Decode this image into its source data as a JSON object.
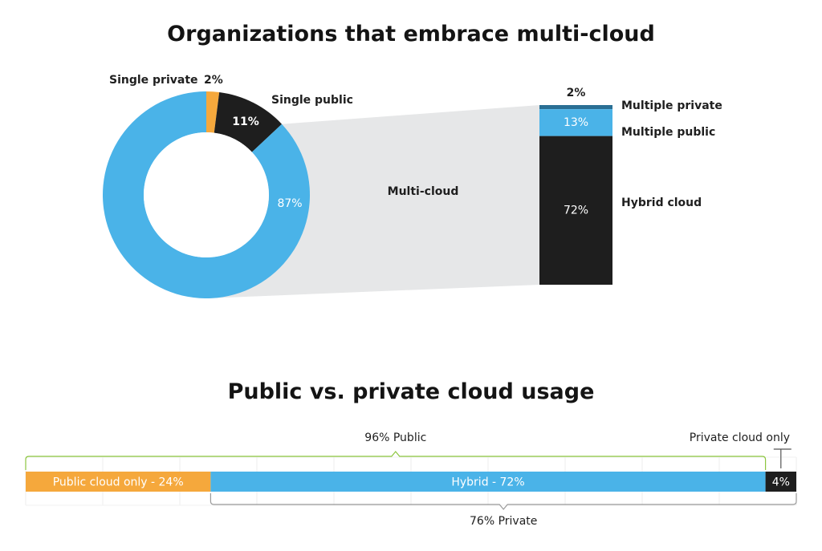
{
  "colors": {
    "blue": "#4ab3e8",
    "black": "#1e1e1e",
    "orange": "#f5a83c",
    "teal": "#2a6f94",
    "gray_wedge": "#e6e7e8",
    "green_bracket": "#8cc63f",
    "gray_bracket": "#9a9a9a"
  },
  "chart_data": [
    {
      "type": "pie",
      "variant": "donut-with-breakdown-bar",
      "title": "Organizations that embrace multi-cloud",
      "slices": [
        {
          "label": "Single private",
          "value": 2,
          "value_label": "2%",
          "color": "#f5a83c"
        },
        {
          "label": "Single public",
          "value": 11,
          "value_label": "11%",
          "color": "#1e1e1e"
        },
        {
          "label": "Multi-cloud",
          "value": 87,
          "value_label": "87%",
          "color": "#4ab3e8"
        }
      ],
      "breakdown": {
        "of": "Multi-cloud",
        "segments": [
          {
            "label": "Multiple private",
            "value": 2,
            "value_label": "2%",
            "color": "#2a6f94"
          },
          {
            "label": "Multiple public",
            "value": 13,
            "value_label": "13%",
            "color": "#4ab3e8"
          },
          {
            "label": "Hybrid cloud",
            "value": 72,
            "value_label": "72%",
            "color": "#1e1e1e"
          }
        ]
      }
    },
    {
      "type": "bar",
      "variant": "stacked-horizontal-100",
      "title": "Public vs. private cloud usage",
      "segments": [
        {
          "label": "Public cloud only - 24%",
          "value": 24,
          "color": "#f5a83c"
        },
        {
          "label": "Hybrid - 72%",
          "value": 72,
          "color": "#4ab3e8"
        },
        {
          "label": "4%",
          "value": 4,
          "color": "#1e1e1e"
        }
      ],
      "annotations": {
        "public": {
          "label": "96% Public",
          "value": 96
        },
        "private": {
          "label": "76% Private",
          "value": 76
        },
        "private_only": {
          "label": "Private cloud only"
        }
      },
      "grid": true
    }
  ]
}
